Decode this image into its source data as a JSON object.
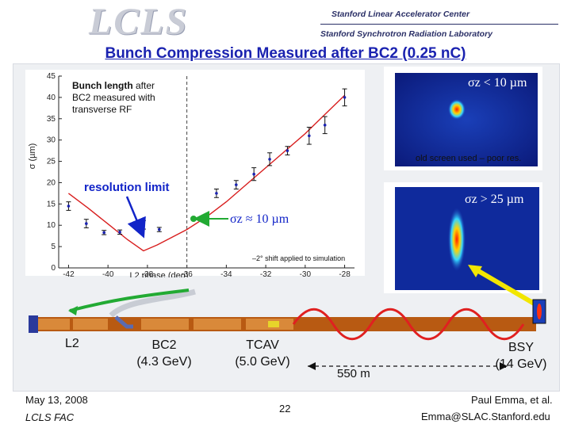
{
  "header": {
    "logo_text": "LCLS",
    "org_line1": "Stanford Linear Accelerator Center",
    "org_line2": "Stanford Synchrotron Radiation Laboratory"
  },
  "title": "Bunch Compression Measured after BC2 (0.25 nC)",
  "chart_data": {
    "type": "scatter",
    "title": "",
    "xlabel": "L2 phase (deg)",
    "ylabel": "σ (µm)",
    "xlim": [
      -42.5,
      -27.5
    ],
    "ylim": [
      0,
      45
    ],
    "xticks": [
      -42,
      -40,
      -38,
      -36,
      -34,
      -32,
      -30,
      -28
    ],
    "yticks": [
      0,
      5,
      10,
      15,
      20,
      25,
      30,
      35,
      40,
      45
    ],
    "grid": false,
    "series": [
      {
        "kind": "measured",
        "color": "#1a22b0",
        "points": [
          {
            "x": -42,
            "y": 14.5,
            "err": 1.0
          },
          {
            "x": -41.1,
            "y": 10.4,
            "err": 1.0
          },
          {
            "x": -40.2,
            "y": 8.3,
            "err": 0.5
          },
          {
            "x": -39.4,
            "y": 8.4,
            "err": 0.5
          },
          {
            "x": -38.2,
            "y": 10.1,
            "err": 1.0
          },
          {
            "x": -37.4,
            "y": 9.0,
            "err": 0.5
          },
          {
            "x": -34.5,
            "y": 17.5,
            "err": 1.0
          },
          {
            "x": -33.5,
            "y": 19.5,
            "err": 1.0
          },
          {
            "x": -32.6,
            "y": 22.0,
            "err": 1.5
          },
          {
            "x": -31.8,
            "y": 25.5,
            "err": 1.5
          },
          {
            "x": -30.9,
            "y": 27.5,
            "err": 1.0
          },
          {
            "x": -29.8,
            "y": 31.0,
            "err": 2.0
          },
          {
            "x": -29.0,
            "y": 33.5,
            "err": 2.0
          },
          {
            "x": -28.0,
            "y": 40.0,
            "err": 2.0
          }
        ]
      },
      {
        "kind": "simulation",
        "color": "#d81e1e",
        "x": [
          -42,
          -41,
          -40,
          -39,
          -38.2,
          -37.5,
          -36,
          -35,
          -34,
          -33,
          -32,
          -31,
          -30,
          -29,
          -28
        ],
        "y": [
          17.5,
          14.0,
          10.3,
          6.6,
          4.0,
          5.4,
          9.0,
          12.0,
          15.5,
          19.5,
          23.5,
          27.5,
          31.5,
          36.0,
          40.5
        ]
      }
    ],
    "reference_line_x": -36
  },
  "annotations": {
    "bunch_length_bold": "Bunch length",
    "bunch_length_rest_1": " after",
    "bunch_length_rest_2": "BC2 measured with",
    "bunch_length_rest_3": "transverse RF",
    "resolution_limit": "resolution limit",
    "shift_note": "–2° shift applied to simulation",
    "sigma_small": "σz < 10 µm",
    "sigma_large": "σz > 25 µm",
    "sigma_mid": "σz ≈ 10 µm",
    "old_screen": "old screen used – poor res."
  },
  "beamline": {
    "l2": "L2",
    "bc2_line1": "BC2",
    "bc2_line2": "(4.3 GeV)",
    "tcav_line1": "TCAV",
    "tcav_line2": "(5.0 GeV)",
    "bsy_line1": "BSY",
    "bsy_line2": "(14 GeV)",
    "distance": "550 m"
  },
  "footer": {
    "date": "May 13, 2008",
    "org": "LCLS FAC",
    "page": "22",
    "author": "Paul Emma, et al.",
    "email": "Emma@SLAC.Stanford.edu"
  },
  "colors": {
    "title": "#1a22b0",
    "simulation": "#d81e1e",
    "data": "#1a22b0",
    "highlight_green": "#22aa33",
    "arrow_yellow": "#f2e600",
    "beamline_tube": "#b85a12"
  }
}
